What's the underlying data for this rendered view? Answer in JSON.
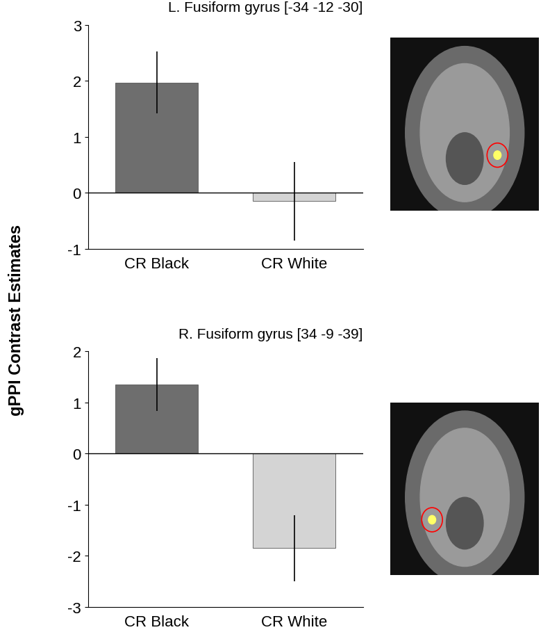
{
  "ylabel": "gPPI Contrast Estimates",
  "chart_data": [
    {
      "type": "bar",
      "title": "L. Fusiform gyrus [-34 -12 -30]",
      "categories": [
        "CR Black",
        "CR White"
      ],
      "values": [
        1.97,
        -0.15
      ],
      "errors": [
        0.55,
        0.7
      ],
      "colors": [
        "#6e6e6e",
        "#d4d4d4"
      ],
      "ylim": [
        -1,
        3
      ],
      "yticks": [
        -1,
        0,
        1,
        2,
        3
      ],
      "grid": false
    },
    {
      "type": "bar",
      "title": "R. Fusiform gyrus [34 -9 -39]",
      "categories": [
        "CR Black",
        "CR White"
      ],
      "values": [
        1.35,
        -1.85
      ],
      "errors": [
        0.52,
        0.65
      ],
      "colors": [
        "#6e6e6e",
        "#d4d4d4"
      ],
      "ylim": [
        -3,
        2
      ],
      "yticks": [
        -3,
        -2,
        -1,
        0,
        1,
        2
      ],
      "grid": false
    }
  ]
}
